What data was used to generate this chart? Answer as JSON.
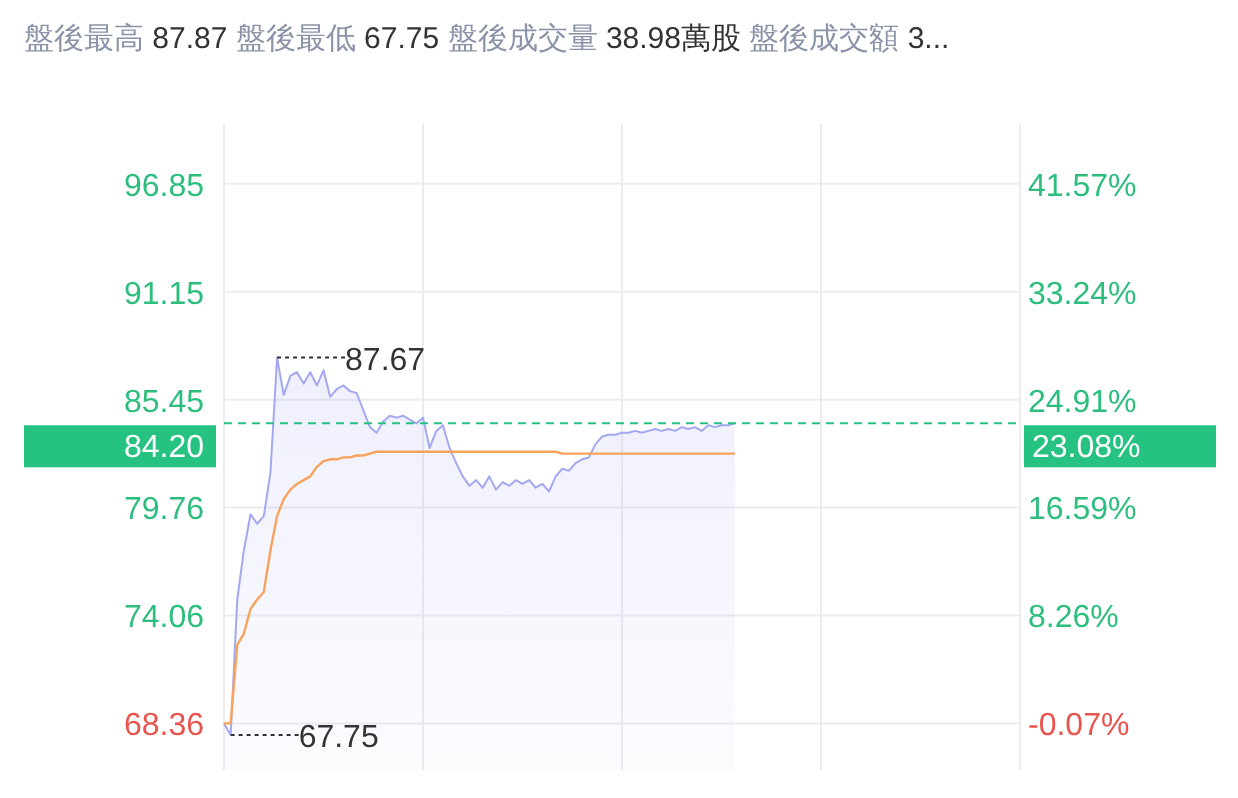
{
  "chart_data": {
    "type": "line",
    "title": "盤後最高 87.87 盤後最低 67.75 盤後成交量 38.98萬股 盤後成交額 3...",
    "categories": [
      null,
      null,
      null,
      null,
      null,
      null,
      null,
      null,
      null,
      null,
      null,
      null,
      null,
      null,
      null,
      null,
      null,
      null,
      null,
      null,
      null,
      null,
      null,
      null,
      null,
      null,
      null,
      null,
      null,
      null,
      null,
      null,
      null,
      null,
      null,
      null,
      null,
      null,
      null,
      null,
      null,
      null,
      null,
      null,
      null,
      null,
      null,
      null,
      null,
      null,
      null,
      null,
      null,
      null,
      null,
      null,
      null,
      null,
      null,
      null,
      null,
      null,
      null,
      null,
      null,
      null,
      null,
      null,
      null,
      null,
      null,
      null,
      null,
      null,
      null,
      null,
      null,
      null,
      null,
      null,
      null,
      null,
      null,
      null,
      null,
      null,
      null,
      null,
      null,
      null,
      null,
      null,
      null,
      null,
      null,
      null,
      null,
      null,
      null,
      null,
      null,
      null,
      null,
      null,
      null,
      null,
      null,
      null,
      null,
      null,
      null,
      null,
      null,
      null,
      null,
      null,
      null,
      null,
      null,
      null,
      null
    ],
    "series": [
      {
        "type": "area",
        "color": "#a3a8f0",
        "values": [
          68.36,
          67.75,
          74.9,
          77.5,
          79.4,
          78.9,
          79.3,
          81.6,
          87.67,
          85.7,
          86.7,
          86.9,
          86.3,
          86.9,
          86.2,
          87.0,
          85.6,
          86.0,
          86.2,
          85.9,
          85.8,
          84.9,
          84.0,
          83.7,
          84.3,
          84.6,
          84.5,
          84.6,
          84.4,
          84.2,
          84.5,
          82.9,
          83.8,
          84.1,
          82.9,
          82.1,
          81.4,
          80.9,
          81.2,
          80.8,
          81.4,
          80.7,
          81.1,
          80.9,
          81.2,
          81.0,
          81.2,
          80.8,
          81.0,
          80.6,
          81.4,
          81.8,
          81.7,
          82.1,
          82.3,
          82.4,
          83.1,
          83.5,
          83.6,
          83.6,
          83.7,
          83.7,
          83.8,
          83.7,
          83.8,
          83.9,
          83.8,
          83.9,
          83.8,
          84.0,
          83.9,
          84.0,
          83.8,
          84.1,
          84.0,
          84.1,
          84.1,
          84.2,
          null,
          null,
          null,
          null,
          null,
          null,
          null,
          null,
          null,
          null,
          null,
          null,
          null,
          null,
          null,
          null,
          null,
          null,
          null,
          null,
          null,
          null,
          null,
          null,
          null,
          null,
          null,
          null,
          null,
          null,
          null,
          null,
          null,
          null,
          null,
          null,
          null,
          null,
          null,
          null,
          null,
          null,
          null
        ]
      },
      {
        "color": "#f7a35c",
        "values": [
          68.36,
          68.36,
          72.5,
          73.1,
          74.4,
          74.9,
          75.3,
          77.5,
          79.3,
          80.2,
          80.7,
          81.0,
          81.2,
          81.4,
          81.9,
          82.2,
          82.3,
          82.3,
          82.4,
          82.4,
          82.5,
          82.5,
          82.6,
          82.7,
          82.7,
          82.7,
          82.7,
          82.7,
          82.7,
          82.7,
          82.7,
          82.7,
          82.7,
          82.7,
          82.7,
          82.7,
          82.7,
          82.7,
          82.7,
          82.7,
          82.7,
          82.7,
          82.7,
          82.7,
          82.7,
          82.7,
          82.7,
          82.7,
          82.7,
          82.7,
          82.7,
          82.6,
          82.6,
          82.6,
          82.6,
          82.6,
          82.6,
          82.6,
          82.6,
          82.6,
          82.6,
          82.6,
          82.6,
          82.6,
          82.6,
          82.6,
          82.6,
          82.6,
          82.6,
          82.6,
          82.6,
          82.6,
          82.6,
          82.6,
          82.6,
          82.6,
          82.6,
          82.6,
          null,
          null,
          null,
          null,
          null,
          null,
          null,
          null,
          null,
          null,
          null,
          null,
          null,
          null,
          null,
          null,
          null,
          null,
          null,
          null,
          null,
          null,
          null,
          null,
          null,
          null,
          null,
          null,
          null,
          null,
          null,
          null,
          null,
          null,
          null,
          null,
          null,
          null,
          null,
          null,
          null,
          null,
          null
        ]
      }
    ],
    "ylim": [
      65.9,
      100.0
    ],
    "yticks": [
      68.36,
      74.06,
      79.76,
      85.45,
      91.15,
      96.85
    ],
    "y2lim": [
      -3.67,
      46.18
    ],
    "y2ticks": [
      {
        "value": -0.07,
        "label": "-0.07%"
      },
      {
        "value": 8.26,
        "label": "8.26%"
      },
      {
        "value": 16.59,
        "label": "16.59%"
      },
      {
        "value": 24.91,
        "label": "24.91%"
      },
      {
        "value": 33.24,
        "label": "33.24%"
      },
      {
        "value": 41.57,
        "label": "41.57%"
      }
    ],
    "ref_lines": [
      {
        "axis": "y",
        "value": 84.2,
        "label": "84.20",
        "color": "#26c281",
        "line_style": "dashed"
      }
    ],
    "annotations": [
      "87.67",
      "67.75",
      "23.08%"
    ],
    "grid": true
  }
}
